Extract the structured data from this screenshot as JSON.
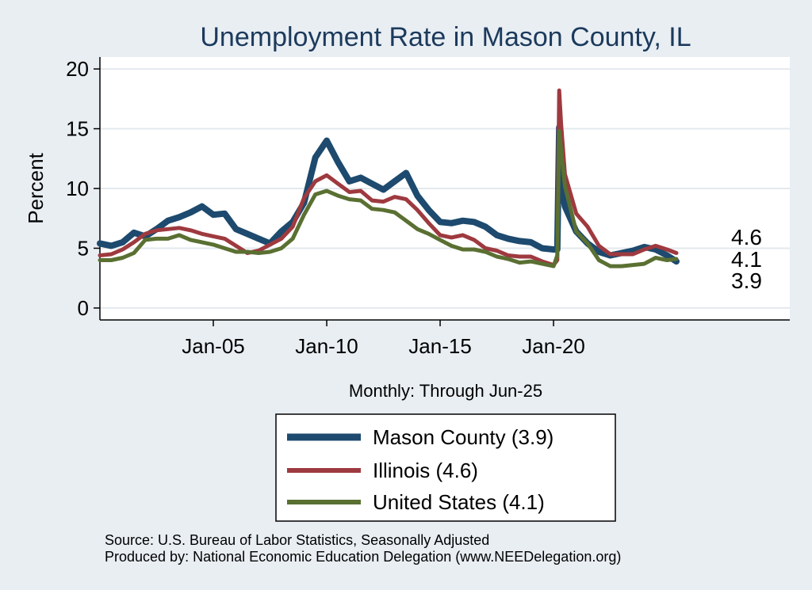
{
  "title": "Unemployment Rate in Mason  County, IL",
  "ylabel": "Percent",
  "xsubtitle": "Monthly: Through Jun-25",
  "source_lines": [
    "Source: U.S. Bureau of Labor Statistics, Seasonally Adjusted",
    "Produced by: National Economic Education Delegation (www.NEEDelegation.org)"
  ],
  "colors": {
    "mason": "#1d4a6e",
    "illinois": "#9e3a3f",
    "us": "#5a7032",
    "background": "#e9eef3",
    "plot_background": "#ffffff",
    "grid": "#e3e9ee"
  },
  "chart_data": {
    "type": "line",
    "title": "Unemployment Rate in Mason  County, IL",
    "xlabel": "Monthly: Through Jun-25",
    "ylabel": "Percent",
    "xlim": [
      "2000-01",
      "2030-06"
    ],
    "ylim": [
      -1,
      21
    ],
    "yticks": [
      0,
      5,
      10,
      15,
      20
    ],
    "xticks": [
      {
        "date": "2005-01",
        "label": "Jan-05"
      },
      {
        "date": "2010-01",
        "label": "Jan-10"
      },
      {
        "date": "2015-01",
        "label": "Jan-15"
      },
      {
        "date": "2020-01",
        "label": "Jan-20"
      }
    ],
    "grid": true,
    "legend_position": "bottom",
    "end_labels": [
      "4.6",
      "4.1",
      "3.9"
    ],
    "series": [
      {
        "key": "mason",
        "name": "Mason  County (3.9)",
        "points": [
          [
            "2000-01",
            5.4
          ],
          [
            "2000-07",
            5.2
          ],
          [
            "2001-01",
            5.5
          ],
          [
            "2001-07",
            6.3
          ],
          [
            "2002-01",
            6.0
          ],
          [
            "2002-07",
            6.6
          ],
          [
            "2003-01",
            7.3
          ],
          [
            "2003-07",
            7.6
          ],
          [
            "2004-01",
            8.0
          ],
          [
            "2004-07",
            8.5
          ],
          [
            "2005-01",
            7.8
          ],
          [
            "2005-07",
            7.9
          ],
          [
            "2006-01",
            6.6
          ],
          [
            "2006-07",
            6.2
          ],
          [
            "2007-01",
            5.8
          ],
          [
            "2007-07",
            5.4
          ],
          [
            "2008-01",
            6.4
          ],
          [
            "2008-07",
            7.2
          ],
          [
            "2009-01",
            8.8
          ],
          [
            "2009-07",
            12.6
          ],
          [
            "2010-01",
            14.0
          ],
          [
            "2010-07",
            12.2
          ],
          [
            "2011-01",
            10.6
          ],
          [
            "2011-07",
            10.9
          ],
          [
            "2012-01",
            10.4
          ],
          [
            "2012-07",
            9.9
          ],
          [
            "2013-01",
            10.6
          ],
          [
            "2013-07",
            11.3
          ],
          [
            "2014-01",
            9.4
          ],
          [
            "2014-07",
            8.2
          ],
          [
            "2015-01",
            7.2
          ],
          [
            "2015-07",
            7.1
          ],
          [
            "2016-01",
            7.3
          ],
          [
            "2016-07",
            7.2
          ],
          [
            "2017-01",
            6.8
          ],
          [
            "2017-07",
            6.1
          ],
          [
            "2018-01",
            5.8
          ],
          [
            "2018-07",
            5.6
          ],
          [
            "2019-01",
            5.5
          ],
          [
            "2019-07",
            5.0
          ],
          [
            "2020-01",
            4.9
          ],
          [
            "2020-03",
            4.9
          ],
          [
            "2020-04",
            15.1
          ],
          [
            "2020-05",
            10.5
          ],
          [
            "2020-07",
            8.5
          ],
          [
            "2021-01",
            6.4
          ],
          [
            "2021-07",
            5.4
          ],
          [
            "2022-01",
            4.7
          ],
          [
            "2022-07",
            4.4
          ],
          [
            "2023-01",
            4.6
          ],
          [
            "2023-07",
            4.8
          ],
          [
            "2024-01",
            5.1
          ],
          [
            "2024-07",
            4.9
          ],
          [
            "2025-01",
            4.4
          ],
          [
            "2025-06",
            3.9
          ]
        ]
      },
      {
        "key": "illinois",
        "name": "Illinois (4.6)",
        "points": [
          [
            "2000-01",
            4.4
          ],
          [
            "2000-07",
            4.5
          ],
          [
            "2001-01",
            4.9
          ],
          [
            "2001-07",
            5.5
          ],
          [
            "2002-01",
            6.2
          ],
          [
            "2002-07",
            6.5
          ],
          [
            "2003-01",
            6.6
          ],
          [
            "2003-07",
            6.7
          ],
          [
            "2004-01",
            6.5
          ],
          [
            "2004-07",
            6.2
          ],
          [
            "2005-01",
            6.0
          ],
          [
            "2005-07",
            5.8
          ],
          [
            "2006-01",
            5.2
          ],
          [
            "2006-07",
            4.6
          ],
          [
            "2007-01",
            4.8
          ],
          [
            "2007-07",
            5.3
          ],
          [
            "2008-01",
            5.8
          ],
          [
            "2008-07",
            6.8
          ],
          [
            "2009-01",
            9.2
          ],
          [
            "2009-07",
            10.6
          ],
          [
            "2010-01",
            11.1
          ],
          [
            "2010-07",
            10.4
          ],
          [
            "2011-01",
            9.7
          ],
          [
            "2011-07",
            9.8
          ],
          [
            "2012-01",
            9.0
          ],
          [
            "2012-07",
            8.9
          ],
          [
            "2013-01",
            9.3
          ],
          [
            "2013-07",
            9.1
          ],
          [
            "2014-01",
            8.2
          ],
          [
            "2014-07",
            7.1
          ],
          [
            "2015-01",
            6.1
          ],
          [
            "2015-07",
            5.9
          ],
          [
            "2016-01",
            6.1
          ],
          [
            "2016-07",
            5.7
          ],
          [
            "2017-01",
            5.0
          ],
          [
            "2017-07",
            4.8
          ],
          [
            "2018-01",
            4.4
          ],
          [
            "2018-07",
            4.3
          ],
          [
            "2019-01",
            4.3
          ],
          [
            "2019-07",
            3.9
          ],
          [
            "2020-01",
            3.6
          ],
          [
            "2020-03",
            4.0
          ],
          [
            "2020-04",
            18.2
          ],
          [
            "2020-05",
            15.4
          ],
          [
            "2020-07",
            11.2
          ],
          [
            "2021-01",
            7.9
          ],
          [
            "2021-07",
            6.8
          ],
          [
            "2022-01",
            5.2
          ],
          [
            "2022-07",
            4.5
          ],
          [
            "2023-01",
            4.5
          ],
          [
            "2023-07",
            4.5
          ],
          [
            "2024-01",
            4.9
          ],
          [
            "2024-07",
            5.2
          ],
          [
            "2025-01",
            4.9
          ],
          [
            "2025-06",
            4.6
          ]
        ]
      },
      {
        "key": "us",
        "name": "United States (4.1)",
        "points": [
          [
            "2000-01",
            4.0
          ],
          [
            "2000-07",
            4.0
          ],
          [
            "2001-01",
            4.2
          ],
          [
            "2001-07",
            4.6
          ],
          [
            "2002-01",
            5.7
          ],
          [
            "2002-07",
            5.8
          ],
          [
            "2003-01",
            5.8
          ],
          [
            "2003-07",
            6.1
          ],
          [
            "2004-01",
            5.7
          ],
          [
            "2004-07",
            5.5
          ],
          [
            "2005-01",
            5.3
          ],
          [
            "2005-07",
            5.0
          ],
          [
            "2006-01",
            4.7
          ],
          [
            "2006-07",
            4.7
          ],
          [
            "2007-01",
            4.6
          ],
          [
            "2007-07",
            4.7
          ],
          [
            "2008-01",
            5.0
          ],
          [
            "2008-07",
            5.8
          ],
          [
            "2009-01",
            7.8
          ],
          [
            "2009-07",
            9.5
          ],
          [
            "2010-01",
            9.8
          ],
          [
            "2010-07",
            9.4
          ],
          [
            "2011-01",
            9.1
          ],
          [
            "2011-07",
            9.0
          ],
          [
            "2012-01",
            8.3
          ],
          [
            "2012-07",
            8.2
          ],
          [
            "2013-01",
            8.0
          ],
          [
            "2013-07",
            7.3
          ],
          [
            "2014-01",
            6.6
          ],
          [
            "2014-07",
            6.2
          ],
          [
            "2015-01",
            5.7
          ],
          [
            "2015-07",
            5.2
          ],
          [
            "2016-01",
            4.9
          ],
          [
            "2016-07",
            4.9
          ],
          [
            "2017-01",
            4.7
          ],
          [
            "2017-07",
            4.3
          ],
          [
            "2018-01",
            4.1
          ],
          [
            "2018-07",
            3.8
          ],
          [
            "2019-01",
            3.9
          ],
          [
            "2019-07",
            3.7
          ],
          [
            "2020-01",
            3.5
          ],
          [
            "2020-03",
            4.4
          ],
          [
            "2020-04",
            14.8
          ],
          [
            "2020-05",
            13.2
          ],
          [
            "2020-07",
            10.2
          ],
          [
            "2021-01",
            6.4
          ],
          [
            "2021-07",
            5.4
          ],
          [
            "2022-01",
            4.0
          ],
          [
            "2022-07",
            3.5
          ],
          [
            "2023-01",
            3.5
          ],
          [
            "2023-07",
            3.6
          ],
          [
            "2024-01",
            3.7
          ],
          [
            "2024-07",
            4.2
          ],
          [
            "2025-01",
            4.0
          ],
          [
            "2025-06",
            4.1
          ]
        ]
      }
    ]
  }
}
